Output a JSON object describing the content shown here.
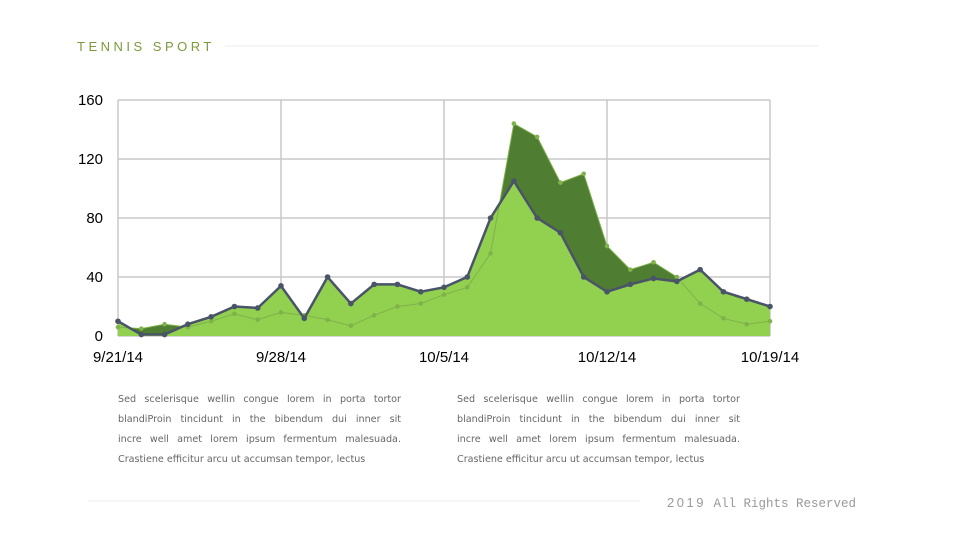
{
  "title": "TENNIS SPORT",
  "chart_data": {
    "type": "area",
    "x": [
      "9/21/14",
      "9/22/14",
      "9/23/14",
      "9/24/14",
      "9/25/14",
      "9/26/14",
      "9/27/14",
      "9/28/14",
      "9/29/14",
      "9/30/14",
      "10/1/14",
      "10/2/14",
      "10/3/14",
      "10/4/14",
      "10/5/14",
      "10/6/14",
      "10/7/14",
      "10/8/14",
      "10/9/14",
      "10/10/14",
      "10/11/14",
      "10/12/14",
      "10/13/14",
      "10/14/14",
      "10/15/14",
      "10/16/14",
      "10/17/14",
      "10/18/14",
      "10/19/14"
    ],
    "xticks": [
      "9/21/14",
      "9/28/14",
      "10/5/14",
      "10/12/14",
      "10/19/14"
    ],
    "ylim": [
      0,
      160
    ],
    "yticks": [
      0,
      40,
      80,
      120,
      160
    ],
    "grid": true,
    "series": [
      {
        "color": "#4f7d32",
        "line_color": "#7fb24a",
        "values": [
          6,
          5,
          8,
          6,
          10,
          15,
          11,
          16,
          14,
          11,
          7,
          14,
          20,
          22,
          28,
          33,
          56,
          144,
          135,
          104,
          110,
          61,
          45,
          50,
          40,
          22,
          12,
          8,
          10
        ]
      },
      {
        "color": "#92d050",
        "line_color": "#4a5468",
        "values": [
          10,
          1,
          1,
          8,
          13,
          20,
          19,
          34,
          12,
          40,
          22,
          35,
          35,
          30,
          33,
          40,
          80,
          105,
          80,
          70,
          40,
          30,
          35,
          39,
          37,
          45,
          30,
          25,
          20
        ]
      }
    ]
  },
  "paragraphs": [
    [
      "Sed scelerisque wellin congue lorem in porta tortor",
      "blandiProin tincidunt in the bibendum dui inner sit",
      "incre well amet lorem ipsum fermentum malesuada.",
      "Crastiene efficitur arcu ut accumsan tempor, lectus"
    ],
    [
      "Sed scelerisque wellin congue lorem in porta tortor",
      "blandiProin tincidunt in the bibendum dui inner sit",
      "incre well amet lorem ipsum fermentum malesuada.",
      "Crastiene efficitur arcu ut accumsan tempor, lectus"
    ]
  ],
  "footer": {
    "year": "2019",
    "text": "All Rights Reserved"
  }
}
